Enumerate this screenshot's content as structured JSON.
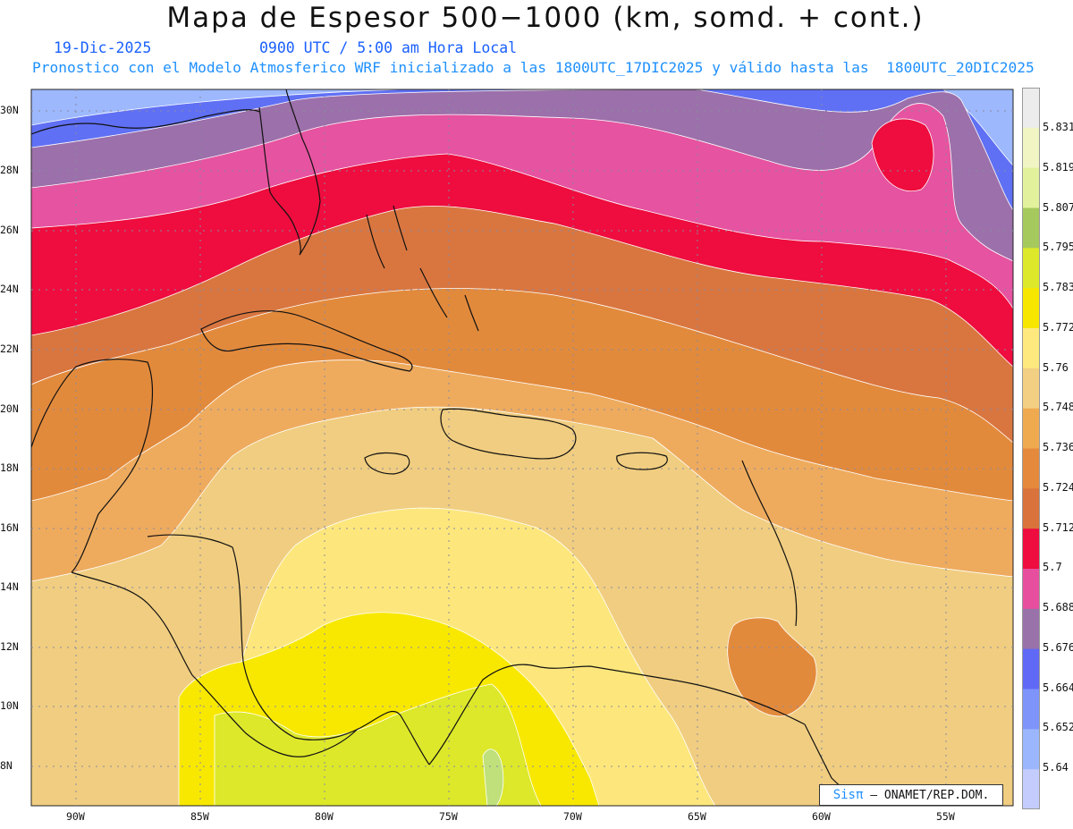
{
  "title": "Mapa de Espesor 500−1000 (km, somd. + cont.)",
  "date": "19-Dic-2025",
  "time": "0900 UTC / 5:00 am Hora Local",
  "description": "Pronostico con el Modelo Atmosferico WRF inicializado a las 1800UTC_17DIC2025 y válido hasta las  1800UTC_20DIC2025",
  "credit": {
    "brand": "Sisπ",
    "org": " – ONAMET/REP.DOM."
  },
  "axes": {
    "lat_ticks": [
      "30N",
      "28N",
      "26N",
      "24N",
      "22N",
      "20N",
      "18N",
      "16N",
      "14N",
      "12N",
      "10N",
      "8N"
    ],
    "lon_ticks": [
      "90W",
      "85W",
      "80W",
      "75W",
      "70W",
      "65W",
      "60W",
      "55W"
    ]
  },
  "colorbar": {
    "labels": [
      "5.831",
      "5.819",
      "5.807",
      "5.795",
      "5.783",
      "5.772",
      "5.76",
      "5.748",
      "5.736",
      "5.724",
      "5.712",
      "5.7",
      "5.688",
      "5.676",
      "5.664",
      "5.652",
      "5.64"
    ],
    "colors_top_to_bottom": [
      "#ececec",
      "#f0f5c3",
      "#e2f29c",
      "#a6c95e",
      "#dde82a",
      "#f7e700",
      "#fde97d",
      "#f2cf82",
      "#efaa50",
      "#e58a3d",
      "#d9723b",
      "#ee0d3e",
      "#e84e9e",
      "#9a72aa",
      "#6068f6",
      "#7e94fb",
      "#9cb6fd",
      "#c3ccfd"
    ]
  },
  "layers": {
    "lightblue": "#9db8fd",
    "blue": "#6070f4",
    "purple": "#9c70aa",
    "pink": "#e653a0",
    "red": "#ee0d3e",
    "darkorange": "#d97640",
    "orange": "#e28a3c",
    "lightorange": "#eeab5e",
    "tan": "#f0cd80",
    "paleyellow": "#fde77c",
    "yellow": "#f8e800",
    "lime": "#dde82a",
    "green": "#bfe07a"
  }
}
